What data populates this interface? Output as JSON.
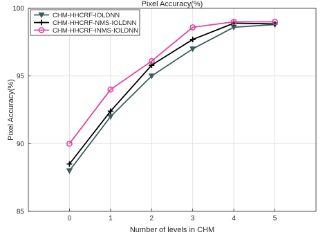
{
  "chart_data": {
    "type": "line",
    "title": "Pixel Accuracy(%)",
    "xlabel": "Number of levels in CHM",
    "ylabel": "Pixel Accuracy(%)",
    "x": [
      0,
      1,
      2,
      3,
      4,
      5
    ],
    "xlim": [
      -1,
      6
    ],
    "ylim": [
      85,
      100
    ],
    "xticks": [
      "0",
      "1",
      "2",
      "3",
      "4",
      "5"
    ],
    "yticks": [
      "85",
      "90",
      "95",
      "100"
    ],
    "grid": true,
    "legend_position": "top-left",
    "series": [
      {
        "name": "CHM-HHCRF-IOLDNN",
        "values": [
          88.0,
          92.0,
          95.0,
          97.0,
          98.6,
          98.8
        ],
        "color": "#3a5f5c",
        "marker": "triangle-down"
      },
      {
        "name": "CHM-HHCRF-NMS-IOLDNN",
        "values": [
          88.5,
          92.4,
          95.8,
          97.7,
          98.9,
          98.85
        ],
        "color": "#000000",
        "marker": "plus"
      },
      {
        "name": "CHM-HHCRF-INMS-IOLDNN",
        "values": [
          90.0,
          94.0,
          96.1,
          98.6,
          99.0,
          99.0
        ],
        "color": "#e0459d",
        "marker": "circle"
      }
    ]
  }
}
